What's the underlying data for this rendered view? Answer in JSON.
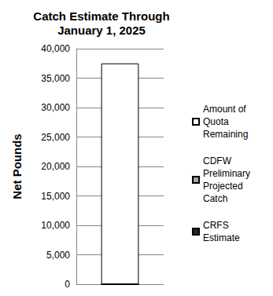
{
  "chart_data": {
    "type": "bar",
    "title": "Catch Estimate Through\nJanuary 1, 2025",
    "y_label": "Net Pounds",
    "categories": [
      null
    ],
    "series": [
      {
        "name": "Amount of Quota Remaining",
        "color": "#ffffff",
        "values": [
          37500
        ]
      },
      {
        "name": "CDFW Preliminary Projected Catch",
        "color": "#a6a6a6",
        "values": [
          0
        ]
      },
      {
        "name": "CRFS Estimate",
        "color": "#262626",
        "values": [
          0
        ]
      }
    ],
    "stacked": true,
    "ylim": [
      0,
      40000
    ],
    "yticks": [
      0,
      {
        "value": 5000,
        "label": "5,000"
      },
      {
        "value": 10000,
        "label": "10,000"
      },
      {
        "value": 15000,
        "label": "15,000"
      },
      {
        "value": 20000,
        "label": "20,000"
      },
      {
        "value": 25000,
        "label": "25,000"
      },
      {
        "value": 30000,
        "label": "30,000"
      },
      {
        "value": 35000,
        "label": "35,000"
      },
      {
        "value": 40000,
        "label": "40,000"
      }
    ],
    "grid": true,
    "legend": "right",
    "tick_labels": "y"
  }
}
